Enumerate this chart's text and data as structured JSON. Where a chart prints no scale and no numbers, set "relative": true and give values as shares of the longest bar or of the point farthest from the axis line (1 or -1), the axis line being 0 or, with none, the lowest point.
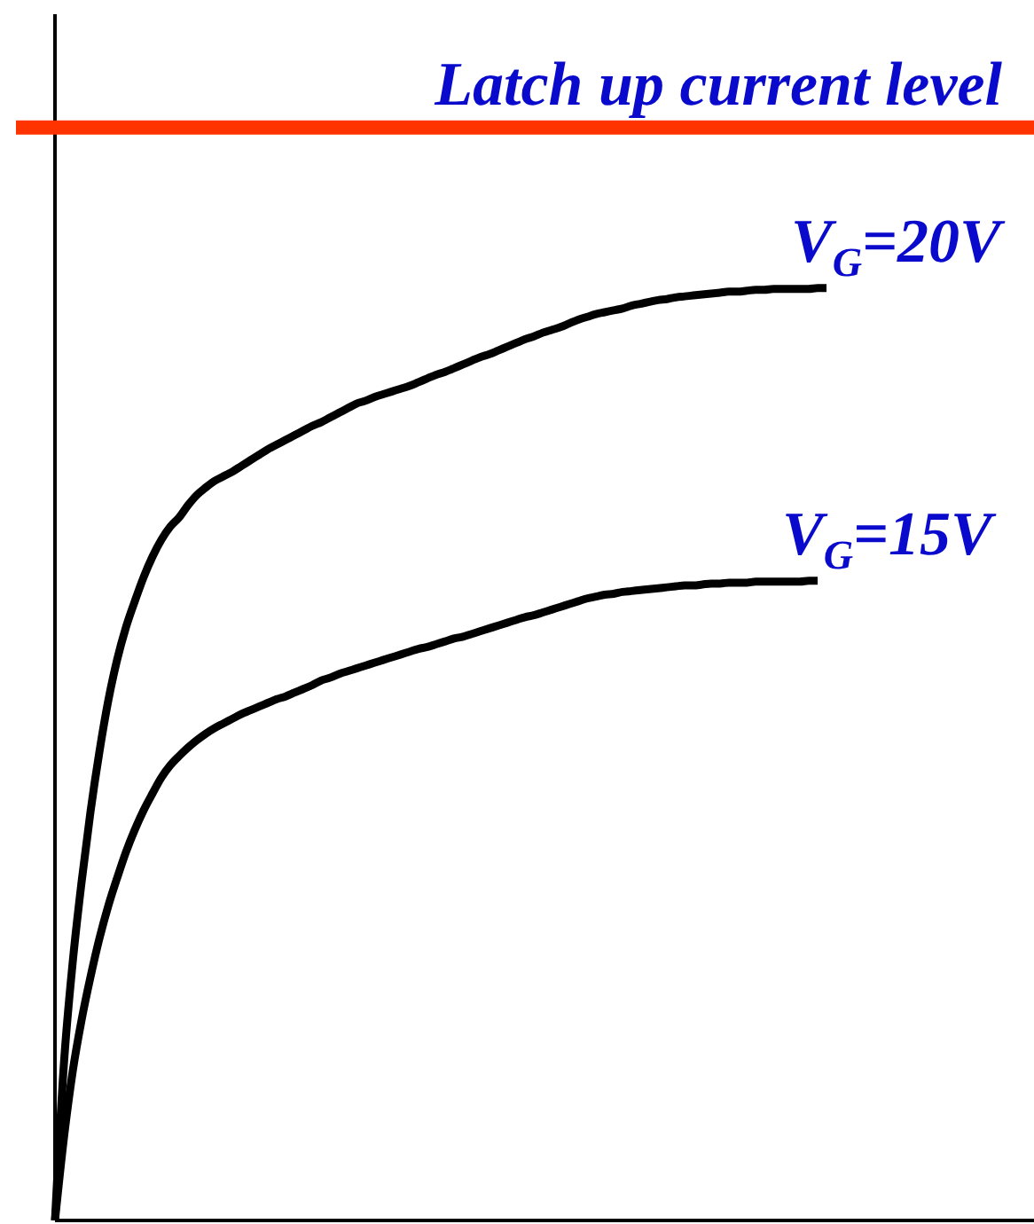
{
  "chart_data": {
    "type": "line",
    "relative": true,
    "categories": [
      null,
      null,
      null,
      null,
      null,
      null,
      null,
      null,
      null,
      null,
      null,
      null,
      null,
      null,
      null,
      null,
      null,
      null,
      null,
      null,
      null,
      null,
      null,
      null,
      null,
      null,
      null,
      null,
      null,
      null,
      null,
      null,
      null,
      null,
      null,
      null,
      null,
      null,
      null,
      null,
      null,
      null,
      null,
      null,
      null,
      null,
      null,
      null,
      null,
      null,
      null,
      null,
      null,
      null,
      null,
      null,
      null,
      null,
      null,
      null,
      null,
      null,
      null,
      null,
      null,
      null,
      null,
      null,
      null,
      null,
      null,
      null,
      null,
      null,
      null,
      null,
      null,
      null,
      null,
      null,
      null,
      null,
      null,
      null,
      null,
      null,
      null,
      null,
      null,
      null,
      null,
      null,
      null,
      null,
      null,
      null,
      null,
      null,
      null,
      null,
      null,
      null,
      null,
      null,
      null,
      null,
      null,
      null,
      null,
      null,
      null
    ],
    "series": [
      {
        "name": "V$_{G}$=20V",
        "color": "#000000",
        "values": [
          0,
          0.167,
          0.277,
          0.363,
          0.438,
          0.502,
          0.557,
          0.601,
          0.636,
          0.664,
          0.69,
          0.712,
          0.73,
          0.744,
          0.754,
          0.767,
          0.778,
          0.786,
          0.793,
          0.798,
          0.803,
          0.809,
          0.815,
          0.821,
          0.827,
          0.832,
          0.837,
          0.842,
          0.847,
          0.852,
          0.856,
          0.861,
          0.866,
          0.871,
          0.876,
          0.879,
          0.883,
          0.886,
          0.889,
          0.892,
          0.895,
          0.899,
          0.903,
          0.907,
          0.91,
          0.914,
          0.918,
          0.922,
          0.926,
          0.929,
          0.933,
          0.937,
          0.941,
          0.945,
          0.948,
          0.952,
          0.955,
          0.958,
          0.962,
          0.966,
          0.969,
          0.972,
          0.974,
          0.976,
          0.978,
          0.981,
          0.983,
          0.985,
          0.987,
          0.988,
          0.99,
          0.991,
          0.992,
          0.993,
          0.994,
          0.995,
          0.996,
          0.996,
          0.997,
          0.998,
          0.998,
          0.999,
          0.999,
          0.999,
          0.999,
          0.999,
          1,
          1,
          null,
          null,
          null,
          null,
          null,
          null,
          null,
          null,
          null,
          null,
          null,
          null,
          null,
          null,
          null,
          null,
          null,
          null,
          null,
          null,
          null,
          null,
          null
        ]
      },
      {
        "name": "V$_{G}$=15V",
        "color": "#000000",
        "values": [
          0,
          0.088,
          0.16,
          0.215,
          0.261,
          0.302,
          0.337,
          0.367,
          0.395,
          0.419,
          0.44,
          0.458,
          0.475,
          0.488,
          0.498,
          0.507,
          0.515,
          0.522,
          0.528,
          0.533,
          0.538,
          0.543,
          0.547,
          0.551,
          0.555,
          0.559,
          0.562,
          0.566,
          0.57,
          0.574,
          0.579,
          0.582,
          0.586,
          0.589,
          0.592,
          0.595,
          0.598,
          0.601,
          0.604,
          0.607,
          0.61,
          0.613,
          0.615,
          0.618,
          0.621,
          0.624,
          0.626,
          0.629,
          0.632,
          0.635,
          0.638,
          0.641,
          0.644,
          0.647,
          0.649,
          0.652,
          0.655,
          0.658,
          0.661,
          0.664,
          0.667,
          0.669,
          0.671,
          0.672,
          0.674,
          0.675,
          0.676,
          0.677,
          0.678,
          0.679,
          0.68,
          0.681,
          0.681,
          0.682,
          0.683,
          0.683,
          0.684,
          0.684,
          0.684,
          0.685,
          0.685,
          0.685,
          0.685,
          0.685,
          0.685,
          0.686,
          0.686,
          null,
          null,
          null,
          null,
          null,
          null,
          null,
          null,
          null,
          null,
          null,
          null,
          null,
          null,
          null,
          null,
          null,
          null,
          null,
          null,
          null,
          null,
          null,
          null
        ]
      }
    ],
    "ref_lines": [
      {
        "axis": "y",
        "value": 1.172,
        "label": "Latch up current level",
        "color": "#ff3300"
      }
    ]
  }
}
